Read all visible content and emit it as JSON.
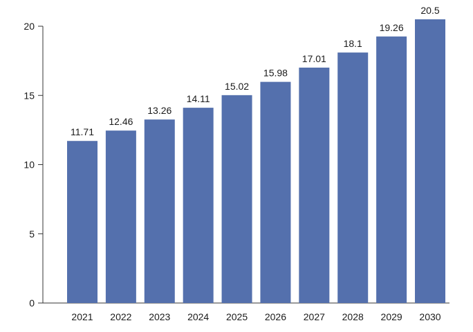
{
  "chart_data": {
    "type": "bar",
    "title": "",
    "xlabel": "",
    "ylabel": "",
    "categories": [
      "2021",
      "2022",
      "2023",
      "2024",
      "2025",
      "2026",
      "2027",
      "2028",
      "2029",
      "2030"
    ],
    "values": [
      11.71,
      12.46,
      13.26,
      14.11,
      15.02,
      15.98,
      17.01,
      18.1,
      19.26,
      20.5
    ],
    "data_labels": [
      "11.71",
      "12.46",
      "13.26",
      "14.11",
      "15.02",
      "15.98",
      "17.01",
      "18.1",
      "19.26",
      "20.5"
    ],
    "ylim": [
      0,
      20
    ],
    "yticks": [
      0,
      5,
      10,
      15,
      20
    ],
    "ytick_labels": [
      "0",
      "5",
      "10",
      "15",
      "20"
    ],
    "grid": false,
    "legend": "none",
    "bar_color": "#5470ad"
  }
}
